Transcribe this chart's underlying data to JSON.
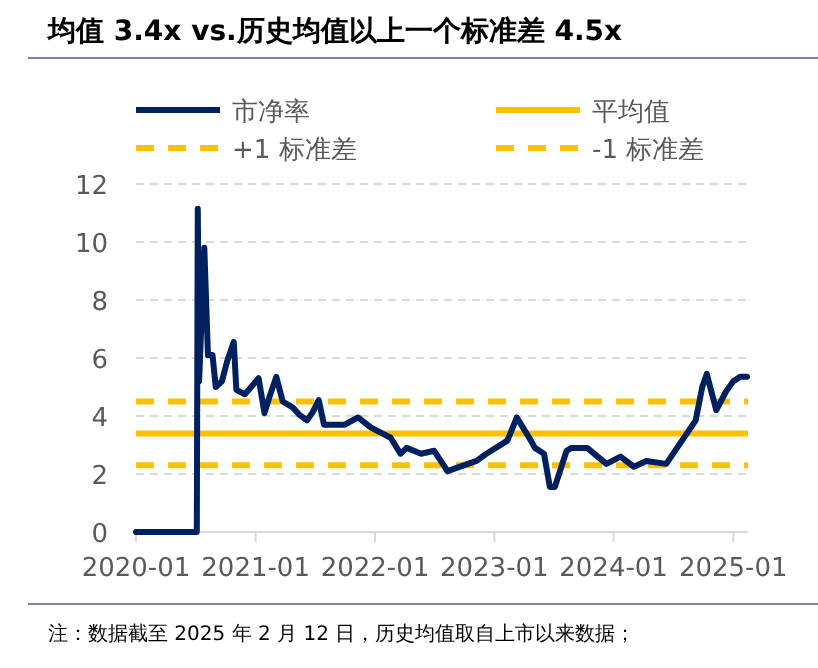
{
  "chart_data": {
    "type": "line",
    "title": "均值 3.4x vs.历史均值以上一个标准差 4.5x",
    "x": [
      "2020-01-01",
      "2020-07-05",
      "2020-07-08",
      "2020-07-12",
      "2020-07-28",
      "2020-08-08",
      "2020-08-22",
      "2020-09-01",
      "2020-09-20",
      "2020-10-06",
      "2020-10-26",
      "2020-11-03",
      "2020-11-29",
      "2021-01-10",
      "2021-01-28",
      "2021-02-12",
      "2021-03-05",
      "2021-03-25",
      "2021-04-24",
      "2021-05-14",
      "2021-06-07",
      "2021-06-23",
      "2021-07-13",
      "2021-07-29",
      "2021-08-22",
      "2021-10-01",
      "2021-11-10",
      "2021-12-20",
      "2022-02-18",
      "2022-03-20",
      "2022-04-08",
      "2022-05-22",
      "2022-07-01",
      "2022-08-11",
      "2022-10-12",
      "2022-11-08",
      "2022-12-08",
      "2023-02-10",
      "2023-03-11",
      "2023-04-23",
      "2023-05-05",
      "2023-06-02",
      "2023-06-20",
      "2023-07-05",
      "2023-08-10",
      "2023-08-25",
      "2023-10-12",
      "2023-12-10",
      "2024-01-22",
      "2024-03-03",
      "2024-04-10",
      "2024-06-10",
      "2024-09-08",
      "2024-09-28",
      "2024-10-12",
      "2024-11-10",
      "2024-12-10",
      "2025-01-01",
      "2025-01-22",
      "2025-02-12"
    ],
    "series": [
      {
        "name": "市净率",
        "color": "#002060",
        "values": [
          0,
          0,
          11.15,
          5.2,
          9.8,
          6.1,
          6.1,
          5.0,
          5.2,
          5.9,
          6.55,
          4.9,
          4.75,
          5.3,
          4.1,
          4.65,
          5.35,
          4.5,
          4.3,
          4.05,
          3.85,
          4.1,
          4.55,
          3.7,
          3.7,
          3.7,
          3.95,
          3.6,
          3.25,
          2.7,
          2.9,
          2.7,
          2.8,
          2.1,
          2.35,
          2.45,
          2.7,
          3.15,
          3.95,
          3.15,
          2.9,
          2.7,
          1.55,
          1.55,
          2.8,
          2.9,
          2.9,
          2.35,
          2.6,
          2.25,
          2.45,
          2.35,
          3.85,
          5.0,
          5.45,
          4.2,
          4.85,
          5.2,
          5.35,
          5.35
        ]
      }
    ],
    "ref_lines": [
      {
        "axis": "y",
        "value": 3.4,
        "label": "平均值",
        "color": "#ffc000",
        "line_style": "solid"
      },
      {
        "axis": "y",
        "value": 4.5,
        "label": "+1 标准差",
        "color": "#ffc000",
        "line_style": "dashed"
      },
      {
        "axis": "y",
        "value": 2.3,
        "label": "-1 标准差",
        "color": "#ffc000",
        "line_style": "dashed"
      }
    ],
    "xlim": [
      "2020-01-01",
      "2025-02-15"
    ],
    "xticks": [
      {
        "value": "2020-01-01",
        "label": "2020-01"
      },
      {
        "value": "2021-01-01",
        "label": "2021-01"
      },
      {
        "value": "2022-01-01",
        "label": "2022-01"
      },
      {
        "value": "2023-01-01",
        "label": "2023-01"
      },
      {
        "value": "2024-01-01",
        "label": "2024-01"
      },
      {
        "value": "2025-01-01",
        "label": "2025-01"
      }
    ],
    "ylim": [
      0,
      12
    ],
    "yticks": [
      0,
      2,
      4,
      6,
      8,
      10,
      12
    ],
    "grid": "y",
    "legend": "top",
    "marker": "none",
    "line_style": "solid",
    "annotations": [
      "注：数据截至 2025 年 2 月 12 日，历史均值取自上市以来数据；"
    ]
  }
}
